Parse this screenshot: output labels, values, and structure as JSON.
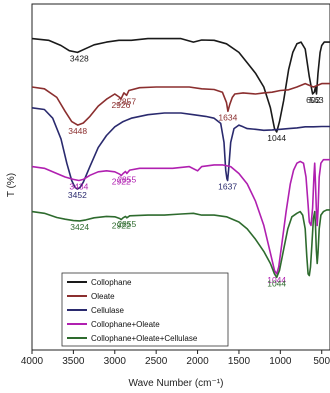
{
  "chart_data": {
    "type": "line",
    "title": "",
    "xlabel": "Wave Number (cm⁻¹)",
    "ylabel": "T (%)",
    "xlim": [
      4000,
      400
    ],
    "x_reversed": true,
    "x_ticks": [
      "4000",
      "3500",
      "3000",
      "2500",
      "2000",
      "1500",
      "1000",
      "500"
    ],
    "x_tick_values": [
      4000,
      3500,
      3000,
      2500,
      2000,
      1500,
      1000,
      500
    ],
    "ylim": [
      0,
      100
    ],
    "y_ticks_visible": false,
    "grid": false,
    "legend_position": "bottom-left",
    "series": [
      {
        "name": "Collophane",
        "color": "#1a1a1a",
        "points": [
          [
            4000,
            90
          ],
          [
            3800,
            89.5
          ],
          [
            3650,
            88
          ],
          [
            3550,
            86.5
          ],
          [
            3450,
            86
          ],
          [
            3380,
            86.8
          ],
          [
            3250,
            88.2
          ],
          [
            3100,
            89
          ],
          [
            2950,
            89.5
          ],
          [
            2800,
            89.5
          ],
          [
            2600,
            90
          ],
          [
            2400,
            90
          ],
          [
            2200,
            90
          ],
          [
            2050,
            89
          ],
          [
            1950,
            89.6
          ],
          [
            1800,
            89.5
          ],
          [
            1650,
            88.5
          ],
          [
            1500,
            86
          ],
          [
            1400,
            83
          ],
          [
            1300,
            80
          ],
          [
            1200,
            76
          ],
          [
            1120,
            70
          ],
          [
            1070,
            64
          ],
          [
            1044,
            63
          ],
          [
            1010,
            66
          ],
          [
            960,
            72
          ],
          [
            900,
            81
          ],
          [
            850,
            86
          ],
          [
            800,
            88.5
          ],
          [
            750,
            89
          ],
          [
            700,
            87
          ],
          [
            650,
            79
          ],
          [
            610,
            74
          ],
          [
            590,
            74.5
          ],
          [
            575,
            76
          ],
          [
            563,
            74
          ],
          [
            545,
            80
          ],
          [
            520,
            86
          ],
          [
            500,
            88
          ],
          [
            470,
            89
          ],
          [
            440,
            89
          ],
          [
            400,
            89
          ]
        ],
        "peaks": [
          {
            "label": "3428",
            "x": 3428,
            "y": 86
          },
          {
            "label": "1044",
            "x": 1044,
            "y": 63
          },
          {
            "label": "602",
            "x": 602,
            "y": 74
          },
          {
            "label": "563",
            "x": 563,
            "y": 74
          }
        ]
      },
      {
        "name": "Oleate",
        "color": "#8b2f2f",
        "points": [
          [
            4000,
            76
          ],
          [
            3850,
            75.5
          ],
          [
            3700,
            73
          ],
          [
            3600,
            69
          ],
          [
            3520,
            66
          ],
          [
            3448,
            65
          ],
          [
            3380,
            65.6
          ],
          [
            3300,
            67.5
          ],
          [
            3200,
            70.5
          ],
          [
            3100,
            72.5
          ],
          [
            3000,
            74
          ],
          [
            2940,
            73
          ],
          [
            2926,
            72.5
          ],
          [
            2890,
            74.3
          ],
          [
            2857,
            73.6
          ],
          [
            2830,
            75
          ],
          [
            2700,
            75.8
          ],
          [
            2500,
            76
          ],
          [
            2300,
            76
          ],
          [
            2100,
            76
          ],
          [
            1950,
            75.5
          ],
          [
            1800,
            75.3
          ],
          [
            1700,
            74.5
          ],
          [
            1650,
            71.5
          ],
          [
            1634,
            69
          ],
          [
            1610,
            71
          ],
          [
            1580,
            73
          ],
          [
            1550,
            74
          ],
          [
            1450,
            74.3
          ],
          [
            1300,
            74
          ],
          [
            1200,
            74.3
          ],
          [
            1100,
            74.5
          ],
          [
            1000,
            75
          ],
          [
            900,
            75.2
          ],
          [
            800,
            76
          ],
          [
            700,
            77
          ],
          [
            600,
            76
          ],
          [
            500,
            77
          ],
          [
            400,
            77
          ]
        ],
        "peaks": [
          {
            "label": "3448",
            "x": 3448,
            "y": 65
          },
          {
            "label": "2926",
            "x": 2926,
            "y": 72.5
          },
          {
            "label": "2857",
            "x": 2857,
            "y": 73.6
          },
          {
            "label": "1634",
            "x": 1634,
            "y": 69
          }
        ]
      },
      {
        "name": "Cellulase",
        "color": "#2a2a6e",
        "points": [
          [
            4000,
            70
          ],
          [
            3850,
            69.5
          ],
          [
            3750,
            67
          ],
          [
            3650,
            61
          ],
          [
            3580,
            54
          ],
          [
            3520,
            49
          ],
          [
            3480,
            47
          ],
          [
            3452,
            46.5
          ],
          [
            3420,
            47
          ],
          [
            3380,
            48.5
          ],
          [
            3300,
            53
          ],
          [
            3200,
            58.5
          ],
          [
            3100,
            62
          ],
          [
            3000,
            64.5
          ],
          [
            2900,
            66
          ],
          [
            2800,
            67
          ],
          [
            2600,
            68
          ],
          [
            2400,
            68.5
          ],
          [
            2200,
            68.5
          ],
          [
            2050,
            68
          ],
          [
            1900,
            67.5
          ],
          [
            1800,
            67
          ],
          [
            1720,
            65.5
          ],
          [
            1680,
            60
          ],
          [
            1660,
            52
          ],
          [
            1645,
            49.5
          ],
          [
            1637,
            49
          ],
          [
            1625,
            52
          ],
          [
            1600,
            60
          ],
          [
            1560,
            64
          ],
          [
            1500,
            65
          ],
          [
            1450,
            64.5
          ],
          [
            1400,
            64
          ],
          [
            1300,
            63.8
          ],
          [
            1200,
            63.5
          ],
          [
            1100,
            63.6
          ],
          [
            1000,
            63.8
          ],
          [
            900,
            64
          ],
          [
            800,
            64.2
          ],
          [
            700,
            64.5
          ],
          [
            600,
            64.5
          ],
          [
            500,
            64.6
          ],
          [
            400,
            64.6
          ]
        ],
        "peaks": [
          {
            "label": "3452",
            "x": 3452,
            "y": 46.5
          },
          {
            "label": "1637",
            "x": 1637,
            "y": 49
          }
        ]
      },
      {
        "name": "Collophane+Oleate",
        "color": "#b020b0",
        "points": [
          [
            4000,
            53
          ],
          [
            3850,
            52.5
          ],
          [
            3700,
            51
          ],
          [
            3600,
            50
          ],
          [
            3500,
            49.3
          ],
          [
            3434,
            49
          ],
          [
            3380,
            49.3
          ],
          [
            3300,
            50.5
          ],
          [
            3200,
            51.5
          ],
          [
            3100,
            51.8
          ],
          [
            3000,
            51.5
          ],
          [
            2940,
            50.8
          ],
          [
            2922,
            50.4
          ],
          [
            2900,
            51
          ],
          [
            2870,
            51.6
          ],
          [
            2855,
            51
          ],
          [
            2820,
            52
          ],
          [
            2700,
            52.5
          ],
          [
            2500,
            52.5
          ],
          [
            2300,
            52.5
          ],
          [
            2100,
            53
          ],
          [
            2000,
            51.8
          ],
          [
            1950,
            53
          ],
          [
            1800,
            53.5
          ],
          [
            1700,
            53.5
          ],
          [
            1600,
            53
          ],
          [
            1500,
            51
          ],
          [
            1400,
            48
          ],
          [
            1300,
            43
          ],
          [
            1200,
            36
          ],
          [
            1120,
            28
          ],
          [
            1070,
            23
          ],
          [
            1044,
            22
          ],
          [
            1020,
            24
          ],
          [
            980,
            31
          ],
          [
            930,
            40
          ],
          [
            880,
            48
          ],
          [
            840,
            52
          ],
          [
            800,
            54
          ],
          [
            760,
            54.5
          ],
          [
            720,
            54
          ],
          [
            690,
            50
          ],
          [
            665,
            42
          ],
          [
            650,
            37
          ],
          [
            630,
            36
          ],
          [
            610,
            41
          ],
          [
            595,
            50
          ],
          [
            585,
            54
          ],
          [
            575,
            48
          ],
          [
            565,
            41
          ],
          [
            555,
            36
          ],
          [
            545,
            40
          ],
          [
            530,
            50
          ],
          [
            510,
            54
          ],
          [
            480,
            55
          ],
          [
            440,
            55
          ],
          [
            400,
            55
          ]
        ],
        "peaks": [
          {
            "label": "3434",
            "x": 3434,
            "y": 49
          },
          {
            "label": "2922",
            "x": 2922,
            "y": 50.4
          },
          {
            "label": "2855",
            "x": 2855,
            "y": 51
          },
          {
            "label": "1044",
            "x": 1044,
            "y": 22
          }
        ]
      },
      {
        "name": "Collophane+Oleate+Cellulase",
        "color": "#2e6b2e",
        "points": [
          [
            4000,
            40
          ],
          [
            3850,
            39.5
          ],
          [
            3700,
            38.3
          ],
          [
            3600,
            37.8
          ],
          [
            3500,
            37.4
          ],
          [
            3424,
            37.3
          ],
          [
            3350,
            37.6
          ],
          [
            3250,
            38.2
          ],
          [
            3100,
            38.6
          ],
          [
            3000,
            38.5
          ],
          [
            2940,
            38
          ],
          [
            2922,
            37.7
          ],
          [
            2900,
            38.2
          ],
          [
            2870,
            38.6
          ],
          [
            2855,
            38.2
          ],
          [
            2820,
            38.8
          ],
          [
            2600,
            39
          ],
          [
            2400,
            39
          ],
          [
            2200,
            39.3
          ],
          [
            2050,
            39.5
          ],
          [
            1950,
            39
          ],
          [
            1800,
            39
          ],
          [
            1650,
            38.5
          ],
          [
            1500,
            37
          ],
          [
            1400,
            35
          ],
          [
            1300,
            32
          ],
          [
            1200,
            28.5
          ],
          [
            1120,
            25
          ],
          [
            1070,
            22
          ],
          [
            1044,
            21
          ],
          [
            1010,
            23
          ],
          [
            960,
            29
          ],
          [
            910,
            35
          ],
          [
            860,
            38.5
          ],
          [
            800,
            39.5
          ],
          [
            760,
            40
          ],
          [
            730,
            39
          ],
          [
            700,
            35
          ],
          [
            680,
            27
          ],
          [
            665,
            22
          ],
          [
            650,
            21.5
          ],
          [
            635,
            24
          ],
          [
            620,
            30
          ],
          [
            600,
            38
          ],
          [
            585,
            40
          ],
          [
            575,
            36
          ],
          [
            565,
            29
          ],
          [
            555,
            25
          ],
          [
            545,
            28
          ],
          [
            530,
            35
          ],
          [
            510,
            39
          ],
          [
            480,
            40
          ],
          [
            440,
            40.5
          ],
          [
            400,
            40.5
          ]
        ],
        "peaks": [
          {
            "label": "3424",
            "x": 3424,
            "y": 37.3
          },
          {
            "label": "2922",
            "x": 2922,
            "y": 37.7
          },
          {
            "label": "2855",
            "x": 2855,
            "y": 38.2
          },
          {
            "label": "1044",
            "x": 1044,
            "y": 21
          }
        ]
      }
    ]
  }
}
